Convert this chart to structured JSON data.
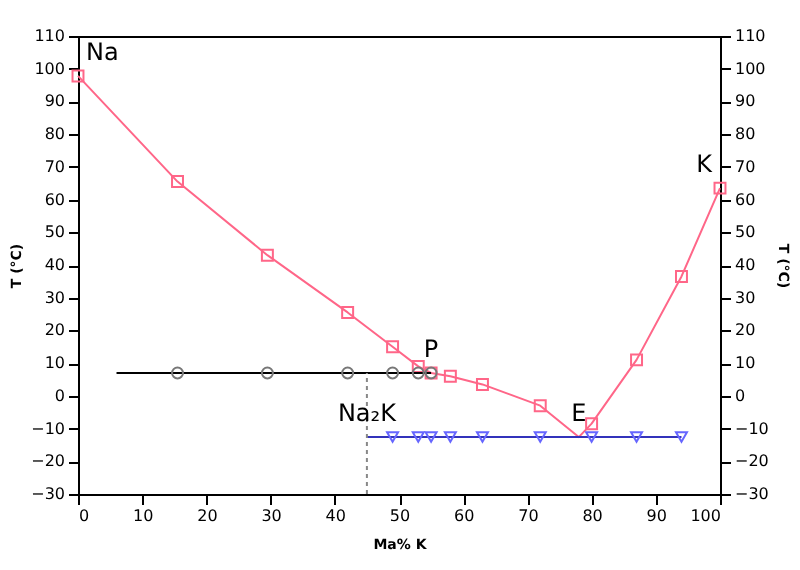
{
  "chart_data": {
    "type": "line",
    "xlabel": "Ma% K",
    "ylabel": "T (°C)",
    "y2label": "T (°C)",
    "xlim": [
      0,
      100
    ],
    "xticks": [
      0,
      10,
      20,
      30,
      40,
      50,
      60,
      70,
      80,
      90,
      100
    ],
    "ylim": [
      -30,
      110
    ],
    "yticks": [
      -30,
      -20,
      -10,
      0,
      10,
      20,
      30,
      40,
      50,
      60,
      70,
      80,
      90,
      100,
      110
    ],
    "y2lim": [
      -30,
      110
    ],
    "y2ticks": [
      -30,
      -20,
      -10,
      0,
      10,
      20,
      30,
      40,
      50,
      60,
      70,
      80,
      90,
      100,
      110
    ],
    "grid": false,
    "series": [
      {
        "color": "#ff6688",
        "marker": "none",
        "line_style": "solid",
        "x": [
          0,
          15.5,
          29.5,
          42,
          49,
          53,
          55,
          58,
          63,
          72,
          78,
          80,
          87,
          94,
          100
        ],
        "values": [
          97.8,
          65.5,
          43,
          25.5,
          15,
          9,
          7,
          6,
          3.5,
          -3,
          -12.6,
          -8.5,
          11,
          36.5,
          63.5
        ]
      },
      {
        "type": "scatter",
        "color": "#ff6688",
        "marker": "square",
        "x": [
          0,
          15.5,
          29.5,
          42,
          49,
          53,
          55,
          58,
          63,
          72,
          80,
          87,
          94,
          100
        ],
        "values": [
          97.8,
          65.5,
          43,
          25.5,
          15,
          9,
          7,
          6,
          3.5,
          -3,
          -8.5,
          11,
          36.5,
          63.5
        ]
      },
      {
        "color": "#000000",
        "marker": "none",
        "line_style": "solid",
        "x": [
          6,
          55
        ],
        "values": [
          7,
          7
        ]
      },
      {
        "type": "scatter",
        "color": "#777777",
        "marker": "circle",
        "x": [
          15.5,
          29.5,
          42,
          49,
          53,
          55
        ],
        "values": [
          7,
          7,
          7,
          7,
          7,
          7
        ]
      },
      {
        "color": "#3333bb",
        "marker": "none",
        "line_style": "solid",
        "x": [
          45,
          94
        ],
        "values": [
          -12.6,
          -12.6
        ]
      },
      {
        "type": "scatter",
        "color": "#6666ff",
        "marker": "triangle",
        "x": [
          49,
          53,
          55,
          58,
          63,
          72,
          80,
          87,
          94
        ],
        "values": [
          -12.6,
          -12.6,
          -12.6,
          -12.6,
          -12.6,
          -12.6,
          -12.6,
          -12.6,
          -12.6
        ]
      },
      {
        "color": "#888888",
        "marker": "none",
        "line_style": "dotted",
        "x": [
          45,
          45
        ],
        "values": [
          -30,
          7
        ]
      }
    ],
    "annotations": [
      {
        "text": "Na",
        "x": 0,
        "y": 97.8
      },
      {
        "text": "K",
        "x": 100,
        "y": 63.5
      },
      {
        "text": "P",
        "x": 55,
        "y": 7
      },
      {
        "text": "E",
        "x": 78,
        "y": -12.6
      },
      {
        "text": "Na₂K",
        "x": 45,
        "y": -12.6
      }
    ]
  }
}
